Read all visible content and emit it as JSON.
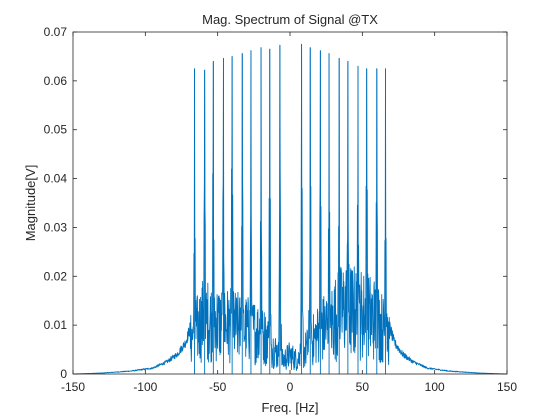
{
  "chart_data": {
    "type": "line",
    "title": "Mag. Spectrum of Signal @TX",
    "xlabel": "Freq. [Hz]",
    "ylabel": "Magnitude[V]",
    "xlim": [
      -150,
      150
    ],
    "ylim": [
      0,
      0.07
    ],
    "xticks": [
      -150,
      -100,
      -50,
      0,
      50,
      100,
      150
    ],
    "yticks": [
      0,
      0.01,
      0.02,
      0.03,
      0.04,
      0.05,
      0.06,
      0.07
    ],
    "xtick_labels": [
      "-150",
      "-100",
      "-50",
      "0",
      "50",
      "100",
      "150"
    ],
    "ytick_labels": [
      "0",
      "0.01",
      "0.02",
      "0.03",
      "0.04",
      "0.05",
      "0.06",
      "0.07"
    ],
    "grid": false,
    "series": [
      {
        "color": "#0072bd",
        "peaks": [
          {
            "x": -66,
            "y": 0.0625
          },
          {
            "x": -59,
            "y": 0.0622
          },
          {
            "x": -53,
            "y": 0.064
          },
          {
            "x": -46,
            "y": 0.0646
          },
          {
            "x": -40,
            "y": 0.065
          },
          {
            "x": -33,
            "y": 0.0656
          },
          {
            "x": -27,
            "y": 0.0662
          },
          {
            "x": -20,
            "y": 0.0668
          },
          {
            "x": -14,
            "y": 0.0665
          },
          {
            "x": -7,
            "y": 0.0673
          },
          {
            "x": 8,
            "y": 0.0675
          },
          {
            "x": 14,
            "y": 0.0668
          },
          {
            "x": 21,
            "y": 0.0662
          },
          {
            "x": 27,
            "y": 0.0656
          },
          {
            "x": 34,
            "y": 0.0646
          },
          {
            "x": 40,
            "y": 0.064
          },
          {
            "x": 47,
            "y": 0.063
          },
          {
            "x": 53,
            "y": 0.0625
          },
          {
            "x": 60,
            "y": 0.0625
          },
          {
            "x": 66,
            "y": 0.0625
          }
        ],
        "envelope": [
          {
            "x": -150,
            "y": 0
          },
          {
            "x": -130,
            "y": 0.0002
          },
          {
            "x": -110,
            "y": 0.0006
          },
          {
            "x": -95,
            "y": 0.0012
          },
          {
            "x": -85,
            "y": 0.0025
          },
          {
            "x": -78,
            "y": 0.004
          },
          {
            "x": -72,
            "y": 0.0065
          },
          {
            "x": -68,
            "y": 0.0105
          },
          {
            "x": -60,
            "y": 0.016
          },
          {
            "x": -40,
            "y": 0.014
          },
          {
            "x": -20,
            "y": 0.012
          },
          {
            "x": -5,
            "y": 0.004
          },
          {
            "x": 0,
            "y": 0.0055
          },
          {
            "x": 5,
            "y": 0.004
          },
          {
            "x": 20,
            "y": 0.012
          },
          {
            "x": 38,
            "y": 0.019
          },
          {
            "x": 60,
            "y": 0.016
          },
          {
            "x": 68,
            "y": 0.0105
          },
          {
            "x": 72,
            "y": 0.0065
          },
          {
            "x": 78,
            "y": 0.004
          },
          {
            "x": 85,
            "y": 0.0025
          },
          {
            "x": 95,
            "y": 0.0012
          },
          {
            "x": 110,
            "y": 0.0006
          },
          {
            "x": 130,
            "y": 0.0002
          },
          {
            "x": 150,
            "y": 0
          }
        ]
      }
    ]
  }
}
